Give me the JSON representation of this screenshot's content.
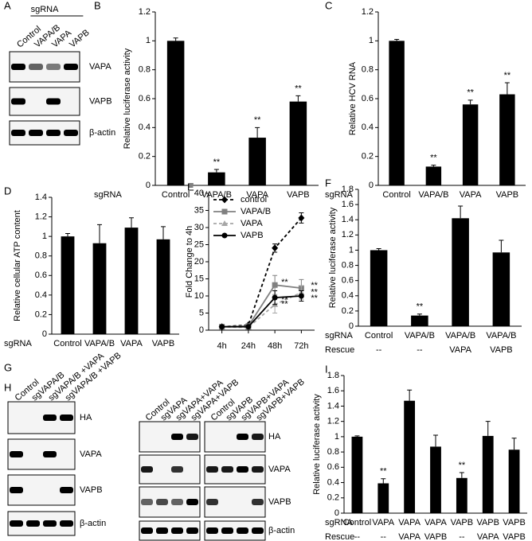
{
  "chart_data": [
    {
      "panel": "B",
      "type": "bar",
      "ylabel": "Relative luciferase activity",
      "category_label": "sgRNA",
      "categories": [
        "Control",
        "VAPA/B",
        "VAPA",
        "VAPB"
      ],
      "values": [
        1,
        0.09,
        0.33,
        0.58
      ],
      "errors": [
        0.02,
        0.02,
        0.07,
        0.04
      ],
      "significance": [
        null,
        "**",
        "**",
        "**"
      ],
      "color": "#000000",
      "ylim": [
        0,
        1.2
      ],
      "yticks": [
        0,
        0.2,
        0.4,
        0.6,
        0.8,
        1,
        1.2
      ]
    },
    {
      "panel": "C",
      "type": "bar",
      "ylabel": "Relative HCV RNA",
      "category_label": "sgRNA",
      "categories": [
        "Control",
        "VAPA/B",
        "VAPA",
        "VAPB"
      ],
      "values": [
        1,
        0.13,
        0.56,
        0.63
      ],
      "errors": [
        0.01,
        0.01,
        0.03,
        0.08
      ],
      "significance": [
        null,
        "**",
        "**",
        "**"
      ],
      "color": "#000000",
      "ylim": [
        0,
        1.2
      ],
      "yticks": [
        0,
        0.2,
        0.4,
        0.6,
        0.8,
        1,
        1.2
      ]
    },
    {
      "panel": "D",
      "type": "bar",
      "ylabel": "Relative cellular ATP content",
      "category_label": "sgRNA",
      "categories": [
        "Control",
        "VAPA/B",
        "VAPA",
        "VAPB"
      ],
      "values": [
        1,
        0.93,
        1.09,
        0.97
      ],
      "errors": [
        0.03,
        0.19,
        0.1,
        0.13
      ],
      "color": "#000000",
      "ylim": [
        0,
        1.4
      ],
      "yticks": [
        0,
        0.2,
        0.4,
        0.6,
        0.8,
        1,
        1.2,
        1.4
      ]
    },
    {
      "panel": "E",
      "type": "line",
      "ylabel": "Fold Change to 4h",
      "categories": [
        "4h",
        "24h",
        "48h",
        "72h"
      ],
      "ylim": [
        0,
        40
      ],
      "yticks": [
        0,
        5,
        10,
        15,
        20,
        25,
        30,
        35,
        40
      ],
      "legend": "top-left",
      "series": [
        {
          "name": "control",
          "color": "#000000",
          "marker": "diamond",
          "linestyle": "dashed",
          "values": [
            1,
            1.5,
            24,
            32.8
          ],
          "errors": [
            0.2,
            0.3,
            1.2,
            1.5
          ]
        },
        {
          "name": "VAPA/B",
          "color": "#808080",
          "marker": "square",
          "linestyle": "solid",
          "values": [
            1,
            1.2,
            13.2,
            12.3
          ],
          "errors": [
            0.2,
            0.3,
            2.8,
            2.5
          ],
          "significance": [
            null,
            null,
            "**",
            "**"
          ]
        },
        {
          "name": "VAPA",
          "color": "#a6a6a6",
          "marker": "triangle",
          "linestyle": "dashed",
          "values": [
            1,
            0.8,
            7.5,
            11
          ],
          "errors": [
            0.2,
            0.2,
            2.5,
            2
          ],
          "significance": [
            null,
            null,
            "**",
            "**"
          ]
        },
        {
          "name": "VAPB",
          "color": "#000000",
          "marker": "circle",
          "linestyle": "solid",
          "values": [
            1,
            1,
            9.5,
            10
          ],
          "errors": [
            0.2,
            0.3,
            2,
            1.5
          ],
          "significance": [
            null,
            null,
            "**",
            "**"
          ]
        }
      ]
    },
    {
      "panel": "F",
      "type": "bar",
      "ylabel": "Relative luciferase activity",
      "category_label": "sgRNA",
      "rescue_label": "Rescue",
      "categories": [
        "Control",
        "VAPA/B",
        "VAPA/B",
        "VAPA/B"
      ],
      "rescue": [
        "--",
        "--",
        "VAPA",
        "VAPB"
      ],
      "values": [
        1,
        0.14,
        1.42,
        0.97
      ],
      "errors": [
        0.02,
        0.02,
        0.16,
        0.16
      ],
      "significance": [
        null,
        "**",
        null,
        null
      ],
      "color": "#000000",
      "ylim": [
        0,
        1.8
      ],
      "yticks": [
        0,
        0.2,
        0.4,
        0.6,
        0.8,
        1,
        1.2,
        1.4,
        1.6,
        1.8
      ]
    },
    {
      "panel": "I",
      "type": "bar",
      "ylabel": "Relative luciferase activity",
      "category_label": "sgRNA",
      "rescue_label": "Rescue",
      "categories": [
        "Control",
        "VAPA",
        "VAPA",
        "VAPA",
        "VAPB",
        "VAPB",
        "VAPB"
      ],
      "rescue": [
        "--",
        "--",
        "VAPA",
        "VAPB",
        "--",
        "VAPA",
        "VAPB"
      ],
      "values": [
        1,
        0.39,
        1.47,
        0.87,
        0.46,
        1.01,
        0.83
      ],
      "errors": [
        0.01,
        0.06,
        0.14,
        0.15,
        0.07,
        0.19,
        0.15
      ],
      "significance": [
        null,
        "**",
        null,
        null,
        "**",
        null,
        null
      ],
      "color": "#000000",
      "ylim": [
        0,
        1.8
      ],
      "yticks": [
        0,
        0.2,
        0.4,
        0.6,
        0.8,
        1,
        1.2,
        1.4,
        1.6,
        1.8
      ]
    }
  ],
  "blots": [
    {
      "panel": "A",
      "header": "sgRNA",
      "lanes": [
        [
          "Control",
          "VAPA/B",
          "VAPA",
          "VAPB"
        ]
      ],
      "rows": [
        "VAPA",
        "VAPB",
        "β-actin"
      ]
    },
    {
      "panel": "G",
      "lanes": [
        [
          "Control",
          "sgVAPA/B",
          "sgVAPA/B +VAPA",
          "sgVAPA/B +VAPB"
        ]
      ],
      "rows": [
        "HA",
        "VAPA",
        "VAPB",
        "β-actin"
      ]
    },
    {
      "panel": "H",
      "lanes": [
        [
          "Control",
          "sgVAPA",
          "sgVAPA+VAPA",
          "sgVAPA+VAPB"
        ],
        [
          "Control",
          "sgVAPB",
          "sgVAPB+VAPA",
          "sgVAPB+VAPB"
        ]
      ],
      "rows": [
        "HA",
        "VAPA",
        "VAPB",
        "β-actin"
      ]
    }
  ]
}
